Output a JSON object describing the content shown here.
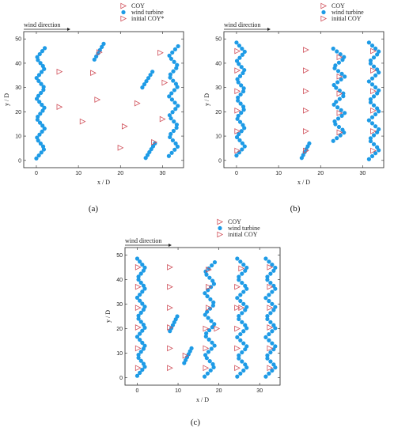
{
  "colors": {
    "turbine": "#1E9BE6",
    "coy": "#D0505A",
    "axis": "#222222"
  },
  "chart_data": [
    {
      "type": "scatter",
      "panel": "(a)",
      "xlabel": "x / D",
      "ylabel": "y / D",
      "wind_label": "wind direction",
      "xlim": [
        -3,
        35
      ],
      "ylim": [
        -3,
        53
      ],
      "xticks": [
        0,
        10,
        20,
        30
      ],
      "yticks": [
        0,
        10,
        20,
        30,
        40,
        50
      ],
      "legend": {
        "placement": "top-right",
        "entries": [
          "COY",
          "wind turbine",
          "initial COY*"
        ]
      },
      "rows": [
        {
          "x0": 0.0,
          "y0": 0.8,
          "y1": 46.2,
          "amp": 2.0,
          "periods": 5.5,
          "count": 38
        },
        {
          "x0": 13.8,
          "y0": 41.5,
          "y1": 48.0,
          "amp": 2.2,
          "periods": 0.5,
          "count": 6
        },
        {
          "x0": 25.2,
          "y0": 30.0,
          "y1": 36.5,
          "amp": 2.4,
          "periods": 0.5,
          "count": 6
        },
        {
          "x0": 26.0,
          "y0": 1.0,
          "y1": 7.0,
          "amp": 2.2,
          "periods": 0.5,
          "count": 6
        },
        {
          "x0": 31.5,
          "y0": 1.8,
          "y1": 47.0,
          "amp": 2.2,
          "periods": 5.5,
          "count": 36
        }
      ],
      "coy": [
        [
          15,
          44.5
        ],
        [
          5.5,
          36.5
        ],
        [
          13.5,
          36
        ],
        [
          14.5,
          25
        ],
        [
          5.5,
          22
        ],
        [
          24,
          23.5
        ],
        [
          11,
          16
        ],
        [
          21,
          14
        ],
        [
          30.5,
          32
        ],
        [
          30,
          17
        ],
        [
          20,
          5.2
        ],
        [
          28,
          7.5
        ],
        [
          29.5,
          44.3
        ]
      ],
      "initial_coy": []
    },
    {
      "type": "scatter",
      "panel": "(b)",
      "xlabel": "x / D",
      "ylabel": "y / D",
      "wind_label": "wind direction",
      "xlim": [
        -3,
        35
      ],
      "ylim": [
        -3,
        53
      ],
      "xticks": [
        0,
        10,
        20,
        30
      ],
      "yticks": [
        0,
        10,
        20,
        30,
        40,
        50
      ],
      "legend": {
        "placement": "top-right",
        "entries": [
          "COY",
          "wind turbine",
          "initial COY"
        ]
      },
      "rows": [
        {
          "x0": 0.0,
          "y0": 2.0,
          "y1": 48.5,
          "amp": 2.0,
          "periods": 6.0,
          "count": 38
        },
        {
          "x0": 15.5,
          "y0": 1.0,
          "y1": 7.0,
          "amp": 1.8,
          "periods": 0.5,
          "count": 6
        },
        {
          "x0": 23.0,
          "y0": 8.0,
          "y1": 46.0,
          "amp": 2.8,
          "periods": 5.0,
          "count": 34
        },
        {
          "x0": 31.5,
          "y0": 0.5,
          "y1": 48.5,
          "amp": 2.5,
          "periods": 6.0,
          "count": 40
        }
      ],
      "coy": [
        [
          16.5,
          45.5
        ],
        [
          16.5,
          37
        ],
        [
          16.5,
          28.5
        ],
        [
          16.5,
          20.5
        ],
        [
          16.5,
          12
        ],
        [
          16.5,
          4
        ]
      ],
      "initial_coy": [
        [
          0.2,
          45
        ],
        [
          0.2,
          37
        ],
        [
          0.2,
          28.5
        ],
        [
          0.2,
          20.5
        ],
        [
          0.2,
          12
        ],
        [
          0.2,
          4
        ],
        [
          24.5,
          42.5
        ],
        [
          24.5,
          34.5
        ],
        [
          24.5,
          27.5
        ],
        [
          24.5,
          19.5
        ],
        [
          24.5,
          11.5
        ],
        [
          32.5,
          45
        ],
        [
          32.5,
          37
        ],
        [
          32.5,
          28.5
        ],
        [
          32.5,
          20.5
        ],
        [
          32.5,
          12
        ],
        [
          32.5,
          4
        ]
      ]
    },
    {
      "type": "scatter",
      "panel": "(c)",
      "xlabel": "x / D",
      "ylabel": "y / D",
      "wind_label": "wind direction",
      "xlim": [
        -3,
        35
      ],
      "ylim": [
        -3,
        53
      ],
      "xticks": [
        0,
        10,
        20,
        30
      ],
      "yticks": [
        0,
        10,
        20,
        30,
        40,
        50
      ],
      "legend": {
        "placement": "top-right",
        "entries": [
          "COY",
          "wind turbine",
          "initial COY"
        ]
      },
      "rows": [
        {
          "x0": 0.0,
          "y0": 0.8,
          "y1": 48.5,
          "amp": 2.0,
          "periods": 6.0,
          "count": 40
        },
        {
          "x0": 8.0,
          "y0": 19.0,
          "y1": 25.0,
          "amp": 1.8,
          "periods": 0.5,
          "count": 6
        },
        {
          "x0": 11.5,
          "y0": 6.0,
          "y1": 12.0,
          "amp": 1.8,
          "periods": 0.5,
          "count": 6
        },
        {
          "x0": 16.5,
          "y0": 0.5,
          "y1": 47.0,
          "amp": 2.5,
          "periods": 5.5,
          "count": 38
        },
        {
          "x0": 24.5,
          "y0": 0.5,
          "y1": 48.5,
          "amp": 2.5,
          "periods": 6.0,
          "count": 40
        },
        {
          "x0": 31.5,
          "y0": 0.5,
          "y1": 48.5,
          "amp": 2.5,
          "periods": 6.0,
          "count": 40
        }
      ],
      "coy": [
        [
          8,
          45
        ],
        [
          8,
          37
        ],
        [
          8,
          28.5
        ],
        [
          8,
          20.5
        ],
        [
          8,
          12
        ],
        [
          8,
          4
        ],
        [
          16.8,
          20
        ],
        [
          16.8,
          12
        ],
        [
          16.8,
          4
        ],
        [
          24.5,
          37
        ],
        [
          24.5,
          28.5
        ],
        [
          24.5,
          20
        ],
        [
          24.5,
          12
        ],
        [
          24.5,
          4
        ]
      ],
      "initial_coy": [
        [
          0.2,
          45
        ],
        [
          0.2,
          37
        ],
        [
          0.2,
          28.5
        ],
        [
          0.2,
          20.5
        ],
        [
          0.2,
          12
        ],
        [
          0.2,
          4
        ],
        [
          11.8,
          9
        ],
        [
          17.5,
          44
        ],
        [
          17.5,
          37
        ],
        [
          17.5,
          28.5
        ],
        [
          19.5,
          20
        ],
        [
          25.5,
          44.5
        ],
        [
          25.5,
          28.5
        ],
        [
          32.5,
          45
        ],
        [
          32.5,
          37
        ],
        [
          32.5,
          28.5
        ],
        [
          32.5,
          20.5
        ],
        [
          32.5,
          12
        ],
        [
          32.5,
          4
        ]
      ]
    }
  ]
}
